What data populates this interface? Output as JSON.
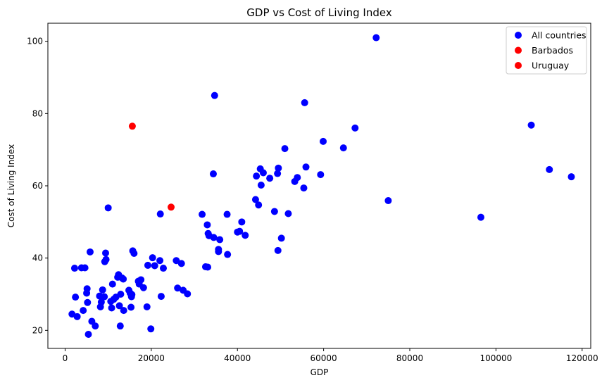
{
  "chart_data": {
    "type": "scatter",
    "title": "GDP vs Cost of Living Index",
    "xlabel": "GDP",
    "ylabel": "Cost of Living Index",
    "xlim": [
      -4000,
      122000
    ],
    "ylim": [
      15,
      105
    ],
    "x_ticks": [
      0,
      20000,
      40000,
      60000,
      80000,
      100000,
      120000
    ],
    "y_ticks": [
      20,
      40,
      60,
      80,
      100
    ],
    "grid": false,
    "legend_position": "top-right",
    "legend": [
      {
        "label": "All countries",
        "color": "#0000ff"
      },
      {
        "label": "Barbados",
        "color": "#ff0000"
      },
      {
        "label": "Uruguay",
        "color": "#ff0000"
      }
    ],
    "series": [
      {
        "name": "All countries",
        "color": "#0000ff",
        "points": [
          [
            1600,
            24.5
          ],
          [
            2200,
            37.2
          ],
          [
            2400,
            29.2
          ],
          [
            2800,
            23.8
          ],
          [
            3800,
            37.3
          ],
          [
            4200,
            25.5
          ],
          [
            4600,
            37.3
          ],
          [
            5000,
            30.3
          ],
          [
            5100,
            31.5
          ],
          [
            5200,
            27.7
          ],
          [
            5400,
            18.9
          ],
          [
            5800,
            41.7
          ],
          [
            6200,
            22.5
          ],
          [
            7000,
            21.2
          ],
          [
            8000,
            29.5
          ],
          [
            8200,
            26.5
          ],
          [
            8400,
            27.8
          ],
          [
            8700,
            31.2
          ],
          [
            9100,
            29.3
          ],
          [
            9200,
            39.0
          ],
          [
            9400,
            41.4
          ],
          [
            9500,
            39.6
          ],
          [
            10000,
            53.9
          ],
          [
            10600,
            28.0
          ],
          [
            10800,
            26.2
          ],
          [
            11000,
            32.8
          ],
          [
            11300,
            28.6
          ],
          [
            11800,
            29.2
          ],
          [
            12200,
            34.7
          ],
          [
            12400,
            35.4
          ],
          [
            12600,
            26.8
          ],
          [
            12800,
            21.2
          ],
          [
            12900,
            30.0
          ],
          [
            13200,
            34.5
          ],
          [
            13500,
            34.2
          ],
          [
            13600,
            25.5
          ],
          [
            14800,
            31.1
          ],
          [
            15100,
            30.3
          ],
          [
            15300,
            26.4
          ],
          [
            15400,
            29.3
          ],
          [
            15500,
            29.9
          ],
          [
            15700,
            42.0
          ],
          [
            16000,
            41.3
          ],
          [
            17000,
            33.6
          ],
          [
            17200,
            32.8
          ],
          [
            17600,
            34.0
          ],
          [
            18200,
            31.8
          ],
          [
            19000,
            26.5
          ],
          [
            19200,
            38.0
          ],
          [
            19900,
            20.4
          ],
          [
            20300,
            40.1
          ],
          [
            20800,
            37.9
          ],
          [
            22000,
            39.3
          ],
          [
            22100,
            52.2
          ],
          [
            22300,
            29.4
          ],
          [
            22800,
            37.2
          ],
          [
            25800,
            39.3
          ],
          [
            26100,
            31.7
          ],
          [
            27000,
            38.5
          ],
          [
            27400,
            31.1
          ],
          [
            28400,
            30.1
          ],
          [
            31800,
            52.1
          ],
          [
            32600,
            37.6
          ],
          [
            33000,
            49.2
          ],
          [
            33100,
            37.5
          ],
          [
            33200,
            46.8
          ],
          [
            33400,
            46.2
          ],
          [
            34400,
            63.3
          ],
          [
            34500,
            45.7
          ],
          [
            34700,
            85.0
          ],
          [
            35600,
            42.4
          ],
          [
            35600,
            41.8
          ],
          [
            35900,
            45.1
          ],
          [
            37600,
            52.1
          ],
          [
            37700,
            41.0
          ],
          [
            40000,
            47.2
          ],
          [
            40500,
            47.4
          ],
          [
            41000,
            50.0
          ],
          [
            41800,
            46.3
          ],
          [
            44200,
            56.2
          ],
          [
            44400,
            62.7
          ],
          [
            44900,
            54.7
          ],
          [
            45300,
            64.7
          ],
          [
            45500,
            60.2
          ],
          [
            46000,
            63.6
          ],
          [
            47500,
            62.1
          ],
          [
            48600,
            52.9
          ],
          [
            49300,
            63.4
          ],
          [
            49400,
            42.1
          ],
          [
            49500,
            64.9
          ],
          [
            50200,
            45.5
          ],
          [
            51000,
            70.3
          ],
          [
            51800,
            52.3
          ],
          [
            53300,
            61.2
          ],
          [
            53900,
            62.3
          ],
          [
            55400,
            59.4
          ],
          [
            55600,
            83.0
          ],
          [
            55900,
            65.2
          ],
          [
            59300,
            63.1
          ],
          [
            59900,
            72.3
          ],
          [
            64600,
            70.5
          ],
          [
            67300,
            76.0
          ],
          [
            72200,
            101.0
          ],
          [
            75000,
            55.9
          ],
          [
            96500,
            51.3
          ],
          [
            108200,
            76.8
          ],
          [
            112400,
            64.5
          ],
          [
            117500,
            62.5
          ]
        ]
      },
      {
        "name": "Barbados",
        "color": "#ff0000",
        "points": [
          [
            15600,
            76.5
          ]
        ]
      },
      {
        "name": "Uruguay",
        "color": "#ff0000",
        "points": [
          [
            24600,
            54.1
          ]
        ]
      }
    ]
  }
}
